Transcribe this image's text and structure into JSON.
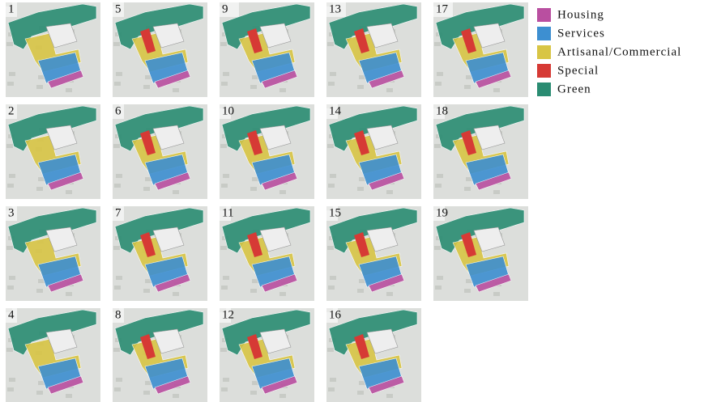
{
  "panels": [
    {
      "label": "1"
    },
    {
      "label": "2"
    },
    {
      "label": "3"
    },
    {
      "label": "4"
    },
    {
      "label": "5"
    },
    {
      "label": "6"
    },
    {
      "label": "7"
    },
    {
      "label": "8"
    },
    {
      "label": "9"
    },
    {
      "label": "10"
    },
    {
      "label": "11"
    },
    {
      "label": "12"
    },
    {
      "label": "13"
    },
    {
      "label": "14"
    },
    {
      "label": "15"
    },
    {
      "label": "16"
    },
    {
      "label": "17"
    },
    {
      "label": "18"
    },
    {
      "label": "19"
    }
  ],
  "legend": [
    {
      "label": "Housing",
      "color": "#b94fa0"
    },
    {
      "label": "Services",
      "color": "#3d8fd1"
    },
    {
      "label": "Artisanal/Commercial",
      "color": "#d8c545"
    },
    {
      "label": "Special",
      "color": "#d63a35"
    },
    {
      "label": "Green",
      "color": "#2a8c72"
    }
  ]
}
